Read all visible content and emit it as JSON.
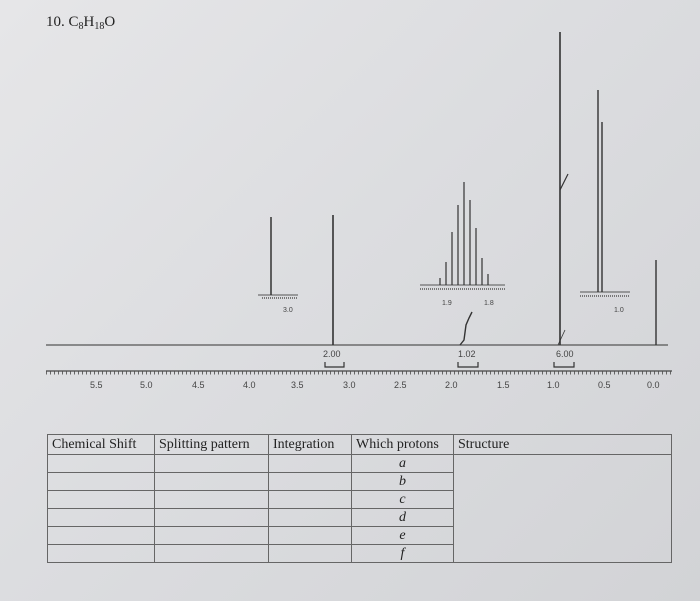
{
  "problem": {
    "number": "10.",
    "formula": {
      "c": "C",
      "c_count": "8",
      "h": "H",
      "h_count": "18",
      "o": "O"
    }
  },
  "spectrum": {
    "axis_ticks": [
      "5.5",
      "5.0",
      "4.5",
      "4.0",
      "3.5",
      "3.0",
      "2.5",
      "2.0",
      "1.5",
      "1.0",
      "0.5",
      "0.0"
    ],
    "integrations": [
      "2.00",
      "1.02",
      "6.00"
    ],
    "inset_labels": [
      "3.0",
      "1.9",
      "1.8",
      "1.0"
    ]
  },
  "table": {
    "headers": [
      "Chemical Shift",
      "Splitting pattern",
      "Integration",
      "Which protons",
      "Structure"
    ],
    "protons": [
      "a",
      "b",
      "c",
      "d",
      "e",
      "f"
    ]
  }
}
